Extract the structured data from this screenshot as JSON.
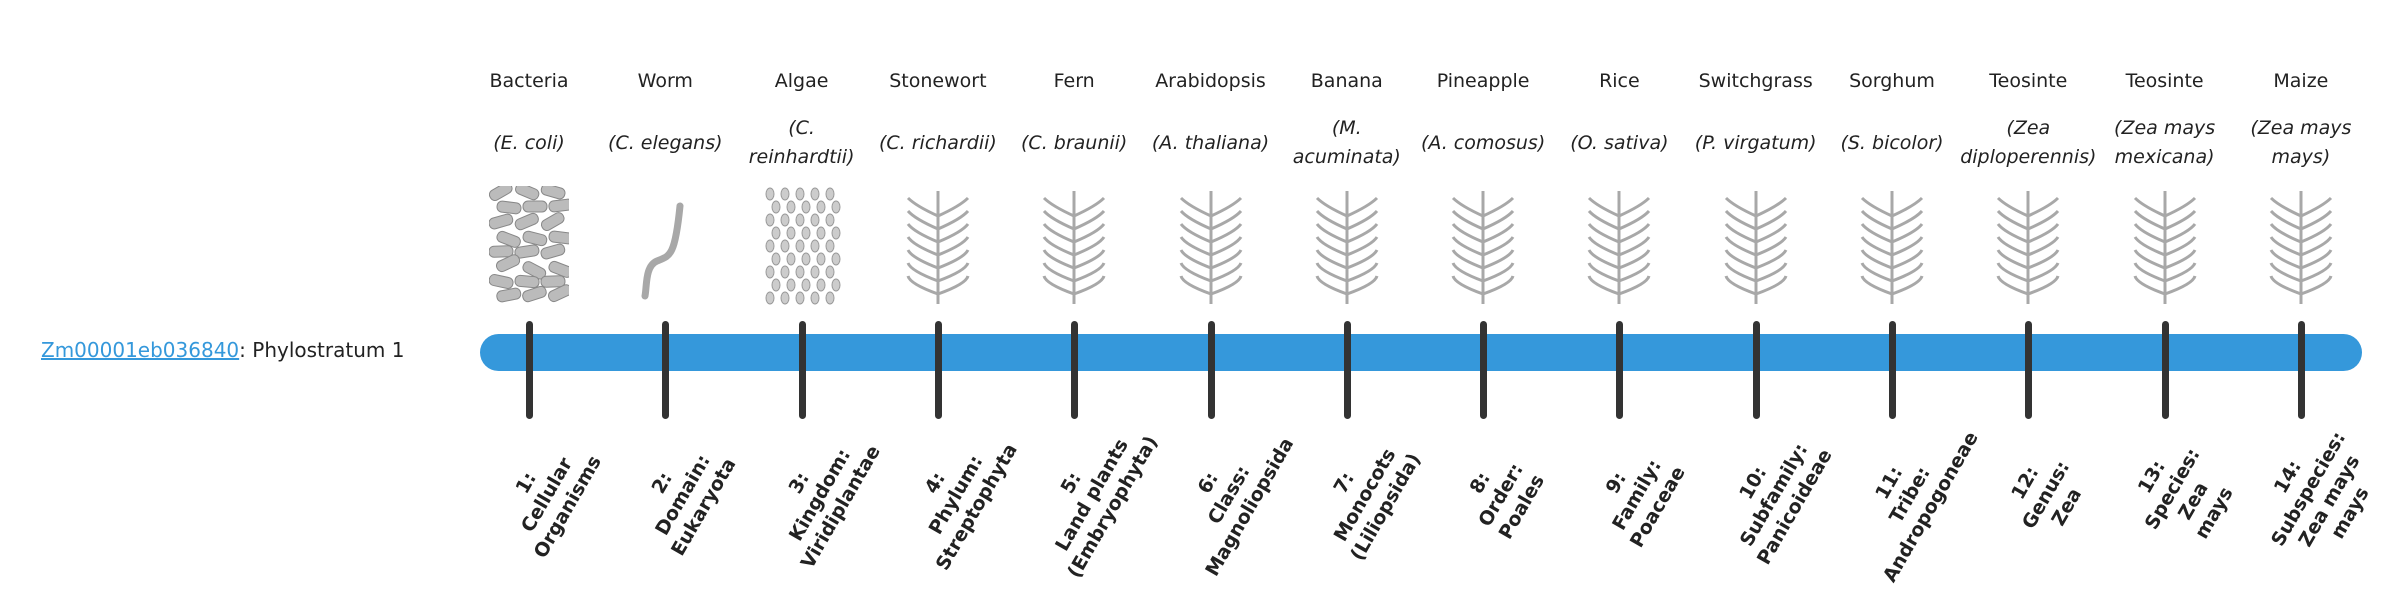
{
  "gene": {
    "id": "Zm00001eb036840",
    "suffix": ": Phylostratum 1"
  },
  "colors": {
    "bar": "#3598db",
    "tick": "#333333",
    "link": "#3498db"
  },
  "organisms": [
    {
      "common": "Bacteria",
      "scientific": "(E. coli)",
      "icon": "bacteria-icon",
      "stratum": [
        "1:",
        "Cellular",
        "Organisms"
      ]
    },
    {
      "common": "Worm",
      "scientific": "(C. elegans)",
      "icon": "worm-icon",
      "stratum": [
        "2:",
        "Domain:",
        "Eukaryota"
      ]
    },
    {
      "common": "Algae",
      "scientific": "(C. reinhardtii)",
      "icon": "algae-icon",
      "stratum": [
        "3:",
        "Kingdom:",
        "Viridiplantae"
      ]
    },
    {
      "common": "Stonewort",
      "scientific": "(C. richardii)",
      "icon": "stonewort-icon",
      "stratum": [
        "4:",
        "Phylum:",
        "Streptophyta"
      ]
    },
    {
      "common": "Fern",
      "scientific": "(C. braunii)",
      "icon": "fern-icon",
      "stratum": [
        "5:",
        "Land plants",
        "(Embryophyta)"
      ]
    },
    {
      "common": "Arabidopsis",
      "scientific": "(A. thaliana)",
      "icon": "arabidopsis-icon",
      "stratum": [
        "6:",
        "Class:",
        "Magnoliopsida"
      ]
    },
    {
      "common": "Banana",
      "scientific": "(M. acuminata)",
      "icon": "banana-icon",
      "stratum": [
        "7:",
        "Monocots",
        "(Liliopsida)"
      ]
    },
    {
      "common": "Pineapple",
      "scientific": "(A. comosus)",
      "icon": "pineapple-icon",
      "stratum": [
        "8:",
        "Order:",
        "Poales"
      ]
    },
    {
      "common": "Rice",
      "scientific": "(O. sativa)",
      "icon": "rice-icon",
      "stratum": [
        "9:",
        "Family:",
        "Poaceae"
      ]
    },
    {
      "common": "Switchgrass",
      "scientific": "(P. virgatum)",
      "icon": "switchgrass-icon",
      "stratum": [
        "10:",
        "Subfamily:",
        "Panicoideae"
      ]
    },
    {
      "common": "Sorghum",
      "scientific": "(S. bicolor)",
      "icon": "sorghum-icon",
      "stratum": [
        "11:",
        "Tribe:",
        "Andropogoneae"
      ]
    },
    {
      "common": "Teosinte",
      "scientific": "(Zea diploperennis)",
      "icon": "teosinte-icon",
      "stratum": [
        "12:",
        "Genus:",
        "Zea"
      ]
    },
    {
      "common": "Teosinte",
      "scientific": "(Zea mays mexicana)",
      "icon": "teosinte-mexicana-icon",
      "stratum": [
        "13:",
        "Species:",
        "Zea",
        "mays"
      ]
    },
    {
      "common": "Maize",
      "scientific": "(Zea mays mays)",
      "icon": "maize-icon",
      "stratum": [
        "14:",
        "Subspecies:",
        "Zea mays",
        "mays"
      ]
    }
  ]
}
